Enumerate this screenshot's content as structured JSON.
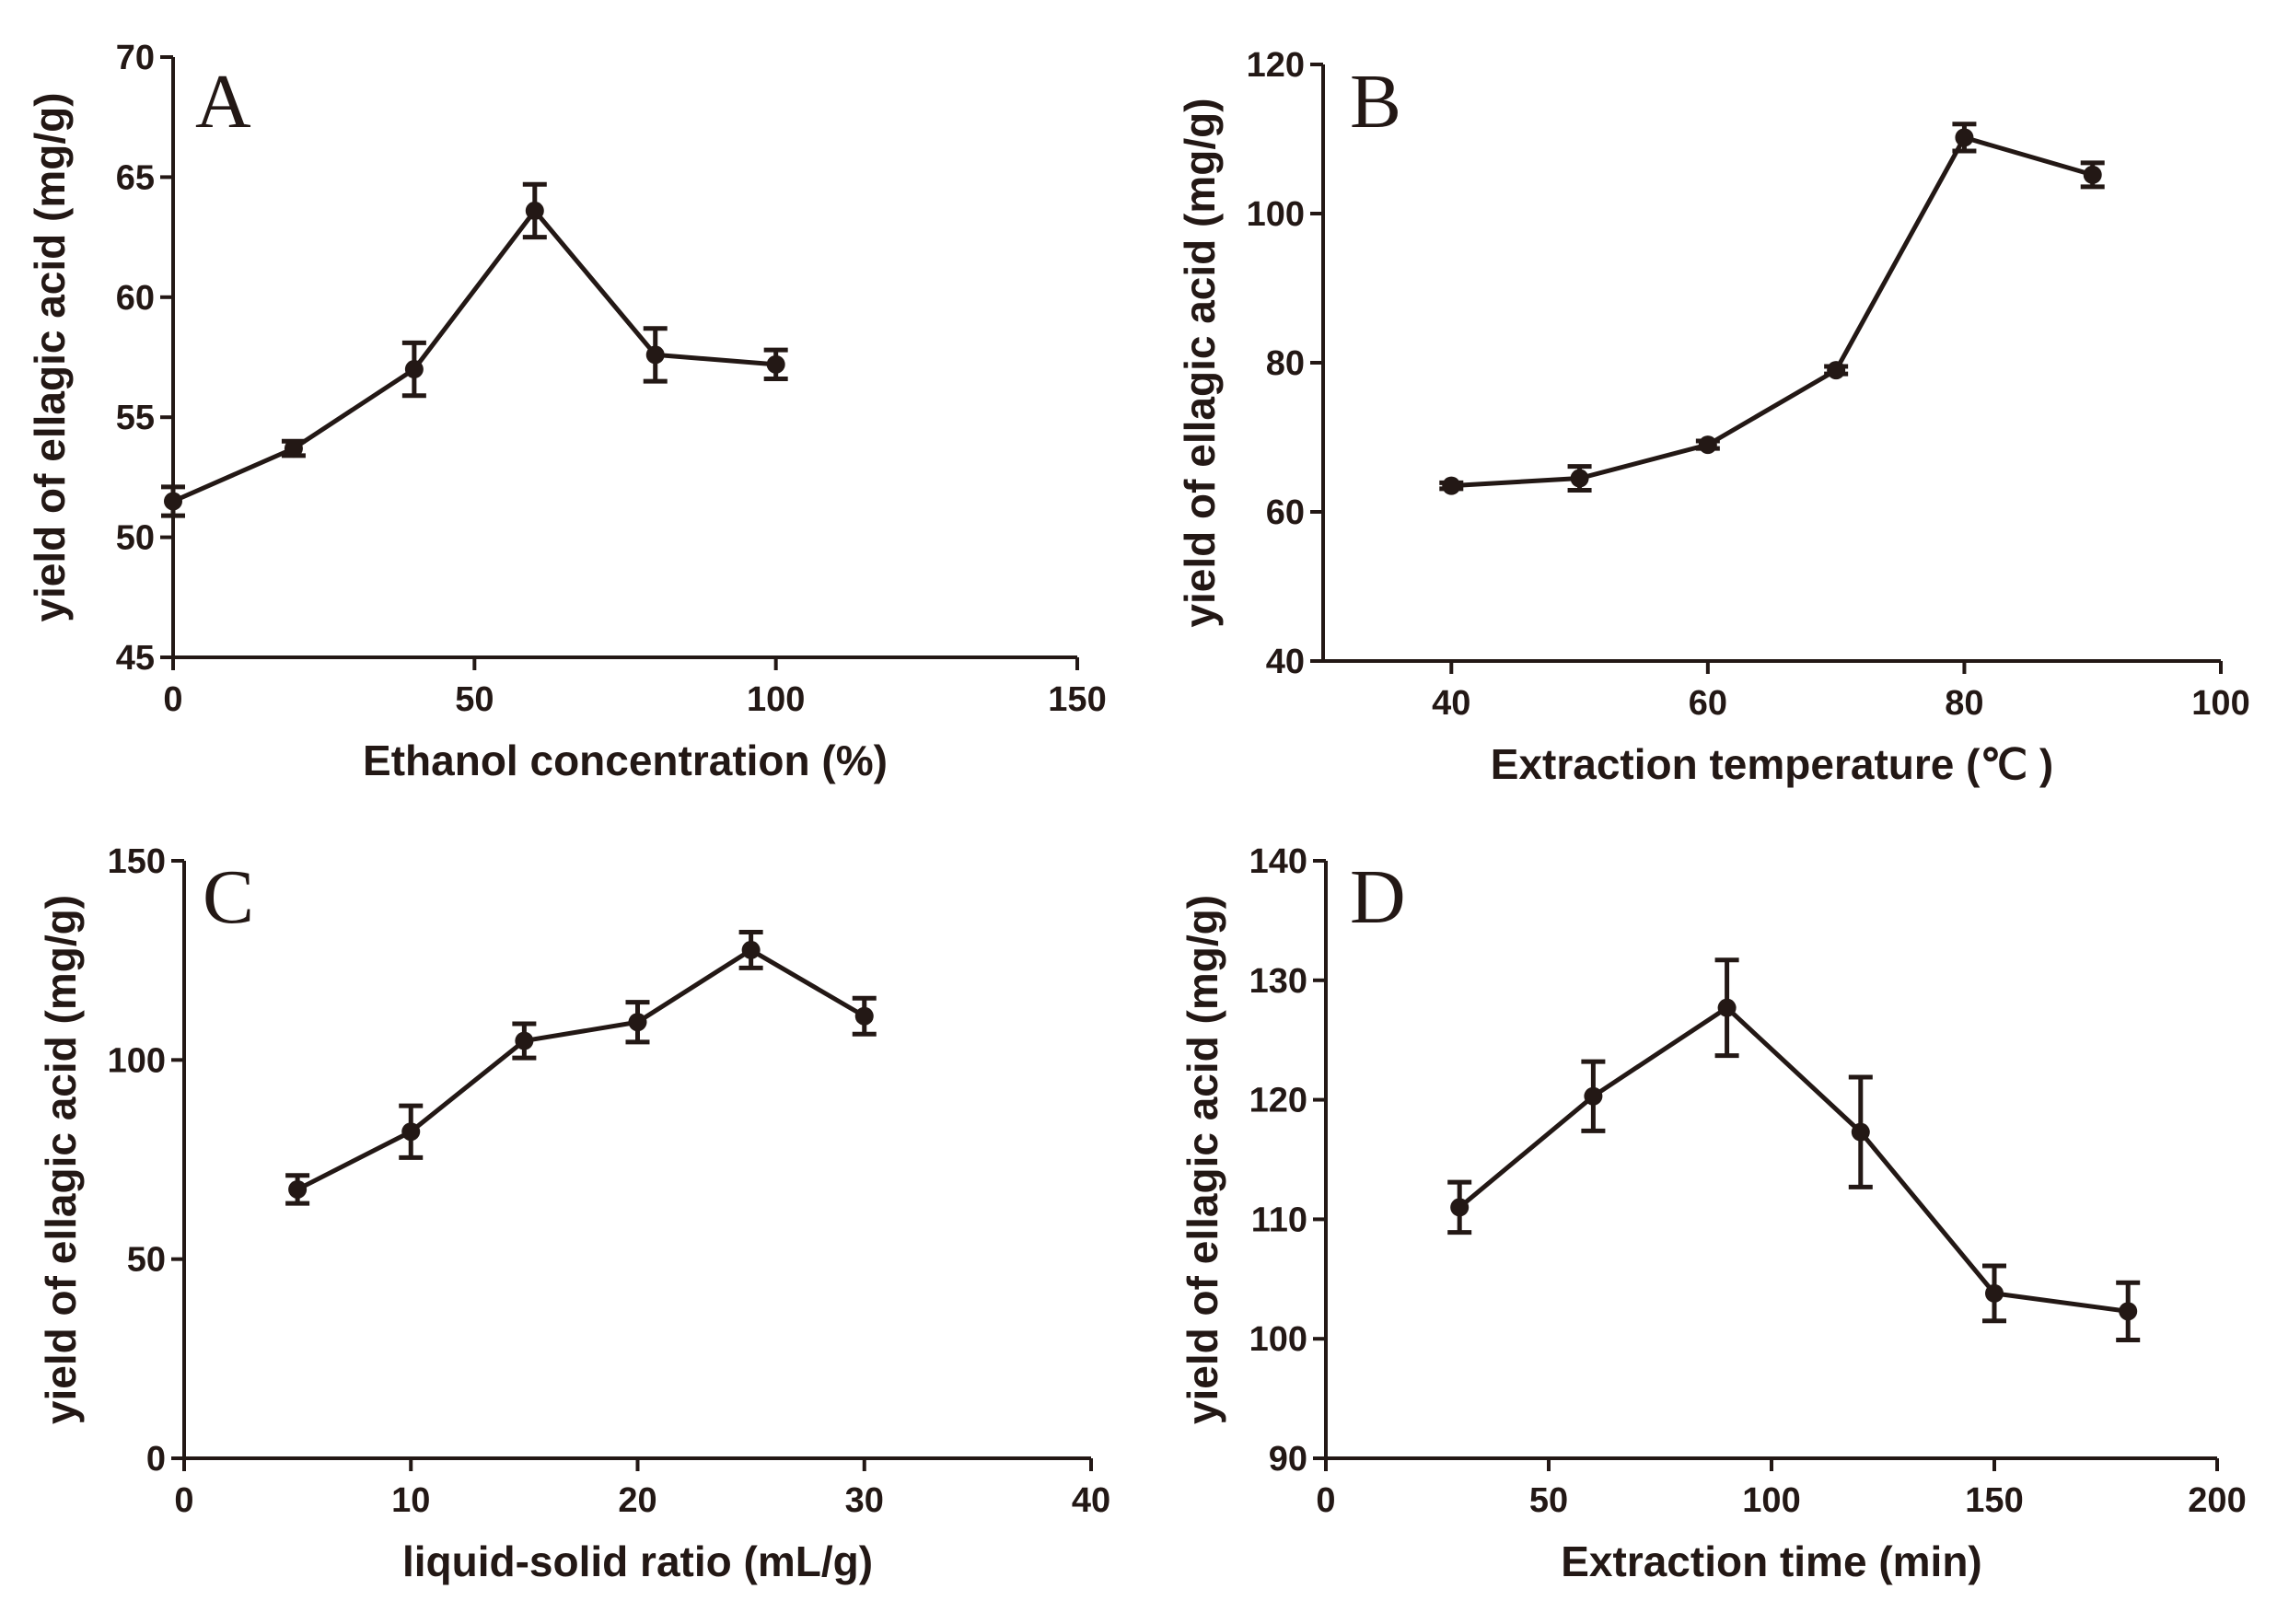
{
  "chart_data": [
    {
      "type": "line",
      "panel_label": "A",
      "xlabel": "Ethanol concentration (%)",
      "ylabel": "yield of ellagic acid (mg/g)",
      "xlim": [
        0,
        150
      ],
      "ylim": [
        45,
        70
      ],
      "xticks": [
        0,
        50,
        100,
        150
      ],
      "yticks": [
        45,
        50,
        55,
        60,
        65,
        70
      ],
      "series": [
        {
          "name": "yield",
          "x": [
            0,
            20,
            40,
            60,
            80,
            100
          ],
          "y": [
            51.5,
            53.7,
            57.0,
            63.6,
            57.6,
            57.2
          ],
          "err": [
            0.6,
            0.3,
            1.1,
            1.1,
            1.1,
            0.6
          ]
        }
      ]
    },
    {
      "type": "line",
      "panel_label": "B",
      "xlabel": "Extraction temperature (℃ )",
      "ylabel": "yield of ellagic acid (mg/g)",
      "xlim": [
        30,
        100
      ],
      "ylim": [
        40,
        120
      ],
      "xticks": [
        40,
        60,
        80,
        100
      ],
      "yticks": [
        40,
        60,
        80,
        100,
        120
      ],
      "series": [
        {
          "name": "yield",
          "x": [
            40,
            50,
            60,
            70,
            80,
            90
          ],
          "y": [
            63.5,
            64.5,
            69.0,
            79.0,
            110.2,
            105.2
          ],
          "err": [
            0.4,
            1.6,
            0.5,
            0.5,
            1.8,
            1.6
          ]
        }
      ]
    },
    {
      "type": "line",
      "panel_label": "C",
      "xlabel": "liquid-solid ratio (mL/g)",
      "ylabel": "yield of ellagic acid (mg/g)",
      "xlim": [
        0,
        40
      ],
      "ylim": [
        0,
        150
      ],
      "xticks": [
        0,
        10,
        20,
        30,
        40
      ],
      "yticks": [
        0,
        50,
        100,
        150
      ],
      "series": [
        {
          "name": "yield",
          "x": [
            5,
            10,
            15,
            20,
            25,
            30
          ],
          "y": [
            67.5,
            82.0,
            104.8,
            109.5,
            127.6,
            111.0
          ],
          "err": [
            3.5,
            6.5,
            4.3,
            5.0,
            4.5,
            4.5
          ]
        }
      ]
    },
    {
      "type": "line",
      "panel_label": "D",
      "xlabel": "Extraction time (min)",
      "ylabel": "yield of ellagic acid (mg/g)",
      "xlim": [
        0,
        200
      ],
      "ylim": [
        90,
        140
      ],
      "xticks": [
        0,
        50,
        100,
        150,
        200
      ],
      "yticks": [
        90,
        100,
        110,
        120,
        130,
        140
      ],
      "series": [
        {
          "name": "yield",
          "x": [
            30,
            60,
            90,
            120,
            150,
            180
          ],
          "y": [
            111.0,
            120.3,
            127.7,
            117.3,
            103.8,
            102.3
          ],
          "err": [
            2.1,
            2.9,
            4.0,
            4.6,
            2.3,
            2.4
          ]
        }
      ]
    }
  ]
}
